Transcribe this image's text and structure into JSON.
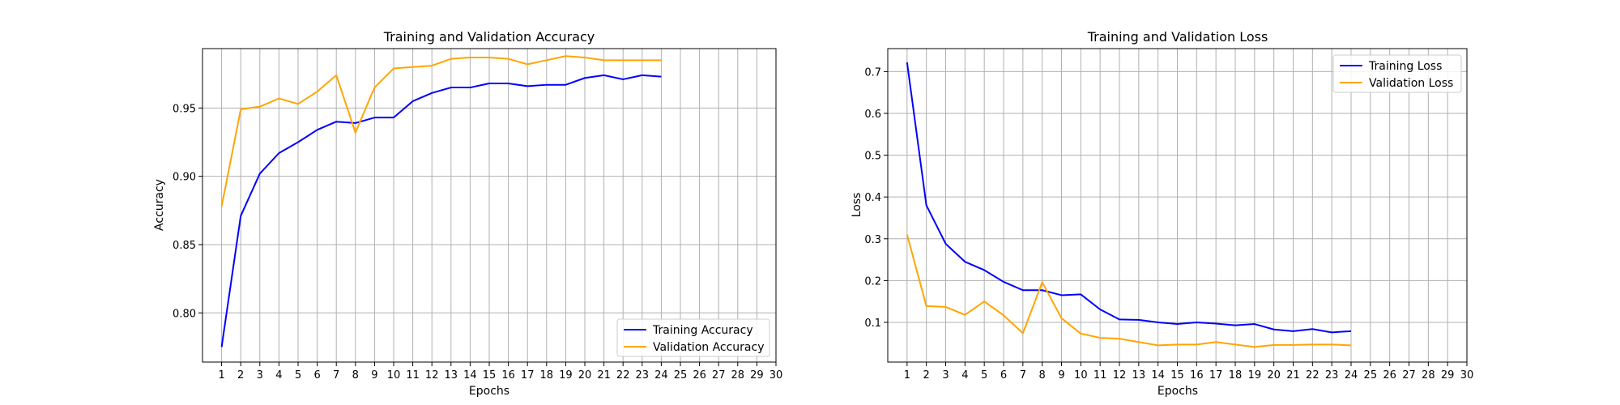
{
  "chart_data": [
    {
      "type": "line",
      "title": "Training and Validation Accuracy",
      "xlabel": "Epochs",
      "ylabel": "Accuracy",
      "xlim": [
        0,
        30
      ],
      "ylim": [
        0.764,
        0.9935
      ],
      "xticks": [
        1,
        2,
        3,
        4,
        5,
        6,
        7,
        8,
        9,
        10,
        11,
        12,
        13,
        14,
        15,
        16,
        17,
        18,
        19,
        20,
        21,
        22,
        23,
        24,
        25,
        26,
        27,
        28,
        29,
        30
      ],
      "yticks": [
        0.8,
        0.85,
        0.9,
        0.95
      ],
      "ytick_labels": [
        "0.80",
        "0.85",
        "0.90",
        "0.95"
      ],
      "grid": true,
      "legend": "lower right",
      "x": [
        1,
        2,
        3,
        4,
        5,
        6,
        7,
        8,
        9,
        10,
        11,
        12,
        13,
        14,
        15,
        16,
        17,
        18,
        19,
        20,
        21,
        22,
        23,
        24
      ],
      "series": [
        {
          "name": "Training Accuracy",
          "color": "#0000ff",
          "values": [
            0.775,
            0.871,
            0.902,
            0.917,
            0.925,
            0.934,
            0.94,
            0.939,
            0.943,
            0.943,
            0.955,
            0.961,
            0.965,
            0.965,
            0.968,
            0.968,
            0.966,
            0.967,
            0.967,
            0.972,
            0.974,
            0.971,
            0.974,
            0.973
          ]
        },
        {
          "name": "Validation Accuracy",
          "color": "#ffa500",
          "values": [
            0.878,
            0.949,
            0.951,
            0.957,
            0.953,
            0.962,
            0.974,
            0.932,
            0.965,
            0.979,
            0.98,
            0.981,
            0.986,
            0.987,
            0.987,
            0.986,
            0.982,
            0.985,
            0.988,
            0.987,
            0.985,
            0.985,
            0.985,
            0.985
          ]
        }
      ]
    },
    {
      "type": "line",
      "title": "Training and Validation Loss",
      "xlabel": "Epochs",
      "ylabel": "Loss",
      "xlim": [
        0,
        30
      ],
      "ylim": [
        0.005,
        0.755
      ],
      "xticks": [
        1,
        2,
        3,
        4,
        5,
        6,
        7,
        8,
        9,
        10,
        11,
        12,
        13,
        14,
        15,
        16,
        17,
        18,
        19,
        20,
        21,
        22,
        23,
        24,
        25,
        26,
        27,
        28,
        29,
        30
      ],
      "yticks": [
        0.1,
        0.2,
        0.3,
        0.4,
        0.5,
        0.6,
        0.7
      ],
      "ytick_labels": [
        "0.1",
        "0.2",
        "0.3",
        "0.4",
        "0.5",
        "0.6",
        "0.7"
      ],
      "grid": true,
      "legend": "upper right",
      "x": [
        1,
        2,
        3,
        4,
        5,
        6,
        7,
        8,
        9,
        10,
        11,
        12,
        13,
        14,
        15,
        16,
        17,
        18,
        19,
        20,
        21,
        22,
        23,
        24
      ],
      "series": [
        {
          "name": "Training Loss",
          "color": "#0000ff",
          "values": [
            0.722,
            0.38,
            0.288,
            0.245,
            0.225,
            0.197,
            0.177,
            0.177,
            0.165,
            0.167,
            0.131,
            0.107,
            0.106,
            0.1,
            0.096,
            0.1,
            0.097,
            0.093,
            0.096,
            0.083,
            0.079,
            0.084,
            0.076,
            0.079
          ]
        },
        {
          "name": "Validation Loss",
          "color": "#ffa500",
          "values": [
            0.31,
            0.139,
            0.137,
            0.118,
            0.15,
            0.117,
            0.074,
            0.196,
            0.11,
            0.073,
            0.063,
            0.061,
            0.053,
            0.045,
            0.047,
            0.047,
            0.053,
            0.047,
            0.041,
            0.046,
            0.046,
            0.047,
            0.047,
            0.045
          ]
        }
      ]
    }
  ]
}
